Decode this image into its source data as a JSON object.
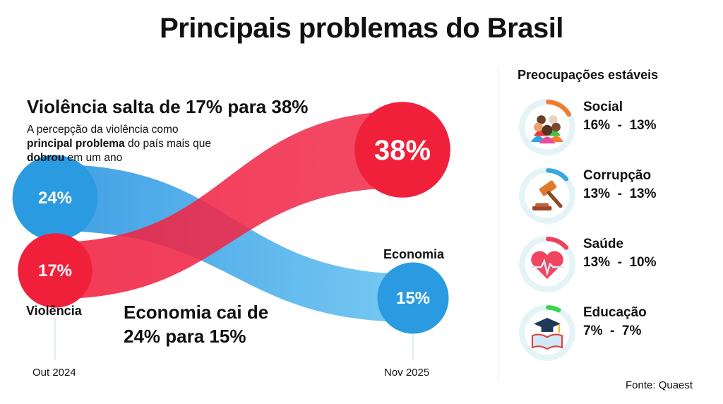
{
  "title": "Principais problemas do Brasil",
  "headline": "Violência salta de 17% para 38%",
  "subtext": {
    "part1": "A percepção da violência como ",
    "bold1": "principal problema",
    "part2": " do país mais que ",
    "bold2": "dobrou",
    "part3": " em um ano"
  },
  "economy_headline": "Economia cai de 24% para 15%",
  "chart_data": {
    "type": "line",
    "title": "Principais problemas do Brasil",
    "x": [
      "Out 2024",
      "Nov 2025"
    ],
    "series": [
      {
        "name": "Economia",
        "values": [
          24,
          15
        ],
        "color": "#2a9be0",
        "label_start": "24%",
        "label_end": "15%"
      },
      {
        "name": "Violência",
        "values": [
          17,
          38
        ],
        "color": "#f0203a",
        "label_start": "17%",
        "label_end": "38%"
      }
    ],
    "unit": "%"
  },
  "series_labels": {
    "violencia": "Violência",
    "economia": "Economia"
  },
  "stable": {
    "title": "Preocupações estáveis",
    "items": [
      {
        "name": "Social",
        "values": "16%  -  13%",
        "from": 16,
        "to": 13,
        "color": "#f47b2a",
        "icon": "people-icon"
      },
      {
        "name": "Corrupção",
        "values": "13%  -  13%",
        "from": 13,
        "to": 13,
        "color": "#3aa6e0",
        "icon": "gavel-icon"
      },
      {
        "name": "Saúde",
        "values": "13%  -  10%",
        "from": 13,
        "to": 10,
        "color": "#f0405a",
        "icon": "heart-pulse-icon"
      },
      {
        "name": "Educação",
        "values": "7%  -  7%",
        "from": 7,
        "to": 7,
        "color": "#3ad64a",
        "icon": "graduation-book-icon"
      }
    ]
  },
  "source": "Fonte: Quaest"
}
